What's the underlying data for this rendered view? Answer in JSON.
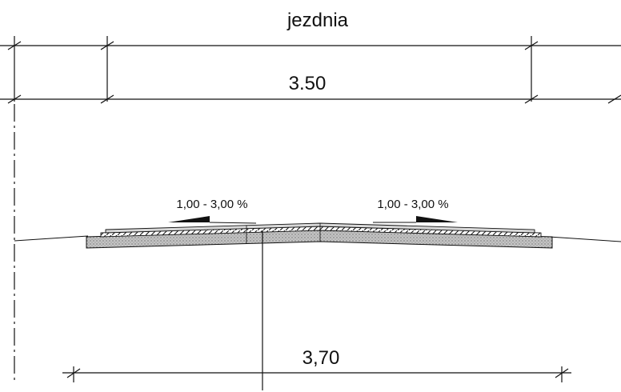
{
  "title": "jezdnia",
  "top_dimension": "3.50",
  "bottom_dimension": "3,70",
  "slope_left": "1,00 - 3,00 %",
  "slope_right": "1,00 - 3,00 %",
  "colors": {
    "line": "#111111",
    "pavement_fill": "#bdbdbd",
    "pavement_stipple": "#6f6f6f"
  }
}
